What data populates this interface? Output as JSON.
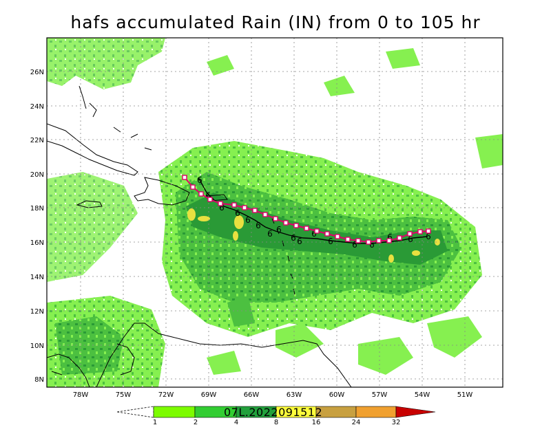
{
  "title": "hafs accumulated Rain (IN) from 0 to 105 hr",
  "storm_id": "07L.2022091512",
  "lat_labels": [
    "8N",
    "10N",
    "12N",
    "14N",
    "16N",
    "18N",
    "20N",
    "22N",
    "24N",
    "26N"
  ],
  "lon_labels": [
    "78W",
    "75W",
    "72W",
    "69W",
    "66W",
    "63W",
    "60W",
    "57W",
    "54W",
    "51W"
  ],
  "colorbar": {
    "labels": [
      "1",
      "2",
      "4",
      "8",
      "16",
      "24",
      "32"
    ],
    "colors": [
      "#7cfc00",
      "#32cd32",
      "#22a03c",
      "#ffff3c",
      "#c8a040",
      "#f0a030",
      "#c80000"
    ]
  },
  "colors": {
    "light_rain": "#86f050",
    "mid_rain": "#4cc040",
    "heavy_rain": "#2a9a36",
    "core": "#e8e040",
    "hafs_track": "#e0006a",
    "best_track": "#000000"
  }
}
